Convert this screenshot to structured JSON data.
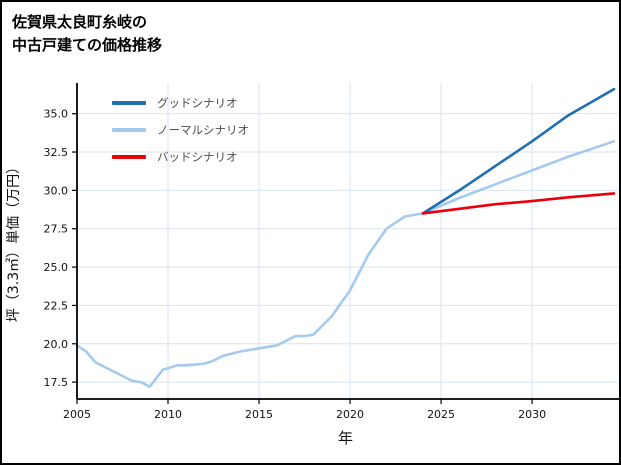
{
  "header": {
    "title_line1": "佐賀県太良町糸岐の",
    "title_line2": "中古戸建ての価格推移"
  },
  "legend": {
    "items": [
      {
        "label": "グッドシナリオ",
        "color": "#1f6fb2"
      },
      {
        "label": "ノーマルシナリオ",
        "color": "#a4cbee"
      },
      {
        "label": "バッドシナリオ",
        "color": "#e8000b"
      }
    ]
  },
  "axes": {
    "xlabel": "年",
    "ylabel": "坪（3.3㎡）単価（万円）"
  },
  "chart_data": {
    "type": "line",
    "title": "佐賀県太良町糸岐の中古戸建ての価格推移",
    "xlabel": "年",
    "ylabel": "坪（3.3㎡）単価（万円）",
    "xlim": [
      2005,
      2034.5
    ],
    "ylim": [
      16.4,
      37.0
    ],
    "xticks": [
      2005,
      2010,
      2015,
      2020,
      2025,
      2030
    ],
    "yticks": [
      17.5,
      20.0,
      22.5,
      25.0,
      27.5,
      30.0,
      32.5,
      35.0
    ],
    "grid": true,
    "grid_color": "#d8e3f0",
    "spine_color": "#000000",
    "legend_position": "upper-left",
    "series": [
      {
        "name": "グッドシナリオ",
        "color": "#1f6fb2",
        "x": [
          2024,
          2026,
          2028,
          2030,
          2032,
          2034.5
        ],
        "y": [
          28.5,
          30.0,
          31.6,
          33.2,
          34.9,
          36.6
        ]
      },
      {
        "name": "ノーマルシナリオ",
        "color": "#a4cbee",
        "x": [
          2005,
          2005.5,
          2006,
          2007,
          2008,
          2008.5,
          2009,
          2009.7,
          2010,
          2010.5,
          2011,
          2012,
          2012.5,
          2013,
          2014,
          2015,
          2016,
          2017,
          2017.5,
          2018,
          2019,
          2020,
          2021,
          2022,
          2022.5,
          2023,
          2024,
          2026,
          2028,
          2030,
          2032,
          2034.5
        ],
        "y": [
          19.9,
          19.5,
          18.8,
          18.2,
          17.6,
          17.5,
          17.2,
          18.3,
          18.4,
          18.6,
          18.6,
          18.7,
          18.9,
          19.2,
          19.5,
          19.7,
          19.9,
          20.5,
          20.5,
          20.6,
          21.8,
          23.5,
          25.8,
          27.5,
          27.9,
          28.3,
          28.5,
          29.5,
          30.4,
          31.3,
          32.2,
          33.2
        ]
      },
      {
        "name": "バッドシナリオ",
        "color": "#e8000b",
        "x": [
          2024,
          2026,
          2028,
          2030,
          2032,
          2034.5
        ],
        "y": [
          28.5,
          28.8,
          29.1,
          29.3,
          29.55,
          29.8
        ]
      }
    ]
  }
}
